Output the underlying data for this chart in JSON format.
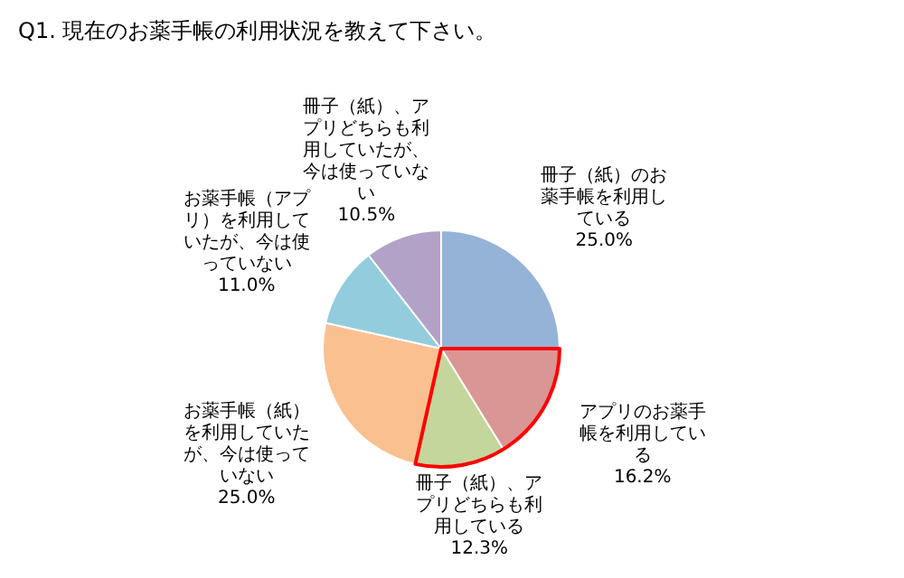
{
  "chart_data": {
    "type": "pie",
    "title": "Q1. 現在のお薬手帳の利用状況を教えて下さい。",
    "categories": [
      "冊子（紙）のお薬手帳を利用している",
      "アプリのお薬手帳を利用している",
      "冊子（紙）、アプリどちらも利用している",
      "お薬手帳（紙）を利用していたが、今は使っていない",
      "お薬手帳（アプリ）を利用していたが、今は使っていない",
      "冊子（紙）、アプリどちらも利用していたが、今は使っていない"
    ],
    "values": [
      25.0,
      16.2,
      12.3,
      25.0,
      11.0,
      10.5
    ],
    "colors": [
      "#95b3d7",
      "#d99694",
      "#c3d69b",
      "#fac090",
      "#93cddd",
      "#b3a2c7"
    ],
    "value_labels": [
      "25.0%",
      "16.2%",
      "12.3%",
      "25.0%",
      "11.0%",
      "10.5%"
    ],
    "legend": false
  }
}
